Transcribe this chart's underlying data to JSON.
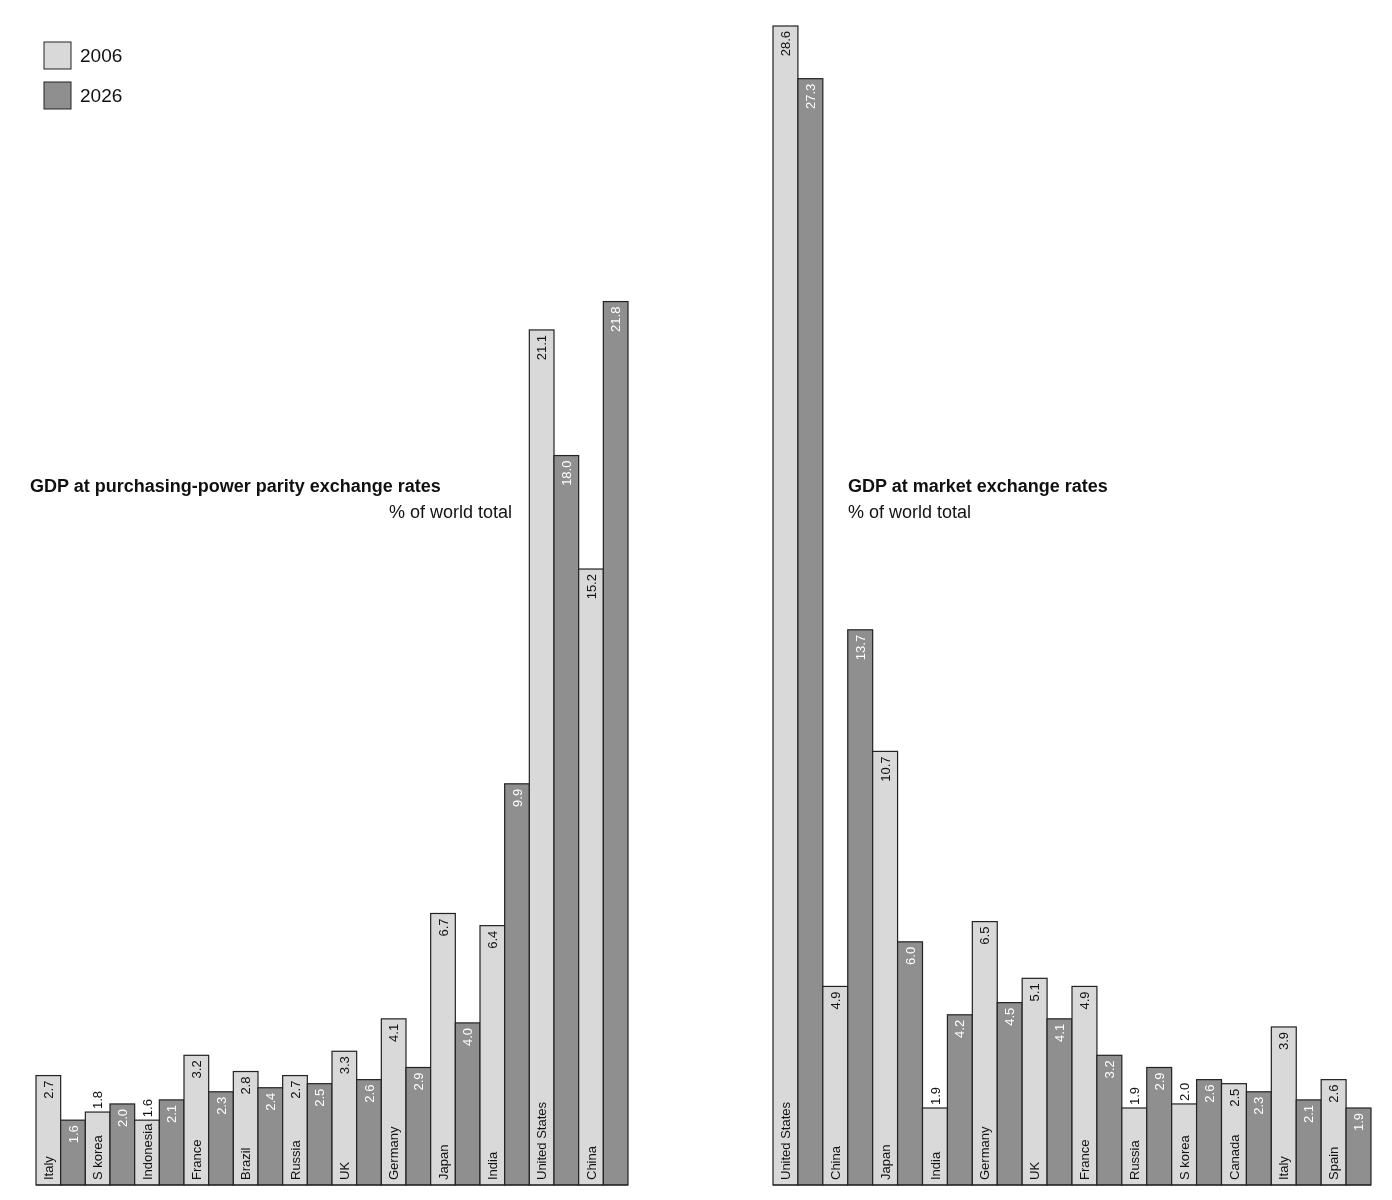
{
  "chart_data": [
    {
      "type": "bar",
      "title": "GDP at purchasing-power parity exchange rates",
      "subtitle": "% of world total",
      "categories": [
        "Italy",
        "S korea",
        "Indonesia",
        "France",
        "Brazil",
        "Russia",
        "UK",
        "Germany",
        "Japan",
        "India",
        "United States",
        "China"
      ],
      "series": [
        {
          "name": "2006",
          "color": "#d9d9d9",
          "values": [
            2.7,
            1.8,
            1.6,
            3.2,
            2.8,
            2.7,
            3.3,
            4.1,
            6.7,
            6.4,
            21.1,
            15.2
          ],
          "value_labels": [
            "2.7",
            "1.8",
            "1.6",
            "3.2",
            "2.8",
            "2.7",
            "3.3",
            "4.1",
            "6.7",
            "6.4",
            "21.1",
            "15.2"
          ]
        },
        {
          "name": "2026",
          "color": "#8f8f8f",
          "values": [
            1.6,
            2.0,
            2.1,
            2.3,
            2.4,
            2.5,
            2.6,
            2.9,
            4.0,
            9.9,
            18.0,
            21.8
          ],
          "value_labels": [
            "1.6",
            "2.0",
            "2.1",
            "2.3",
            "2.4",
            "2.5",
            "2.6",
            "2.9",
            "4.0",
            "9.9",
            "18.0",
            "21.8"
          ]
        }
      ],
      "legend": "top left"
    },
    {
      "type": "bar",
      "title": "GDP at market exchange rates",
      "subtitle": "% of world total",
      "categories": [
        "United States",
        "China",
        "Japan",
        "India",
        "Germany",
        "UK",
        "France",
        "Russia",
        "S korea",
        "Canada",
        "Italy",
        "Spain"
      ],
      "series": [
        {
          "color": "#d9d9d9",
          "values": [
            28.6,
            4.9,
            10.7,
            1.9,
            6.5,
            5.1,
            4.9,
            1.9,
            2.0,
            2.5,
            3.9,
            2.6
          ],
          "value_labels": [
            "28.6",
            "4.9",
            "10.7",
            "1.9",
            "6.5",
            "5.1",
            "4.9",
            "1.9",
            "2.0",
            "2.5",
            "3.9",
            "2.6"
          ]
        },
        {
          "color": "#8f8f8f",
          "values": [
            27.3,
            13.7,
            6.0,
            4.2,
            4.5,
            4.1,
            3.2,
            2.9,
            2.6,
            2.3,
            2.1,
            1.9
          ],
          "value_labels": [
            "27.3",
            "13.7",
            "6.0",
            "4.2",
            "4.5",
            "4.1",
            "3.2",
            "2.9",
            "2.6",
            "2.3",
            "2.1",
            "1.9"
          ]
        }
      ]
    }
  ]
}
